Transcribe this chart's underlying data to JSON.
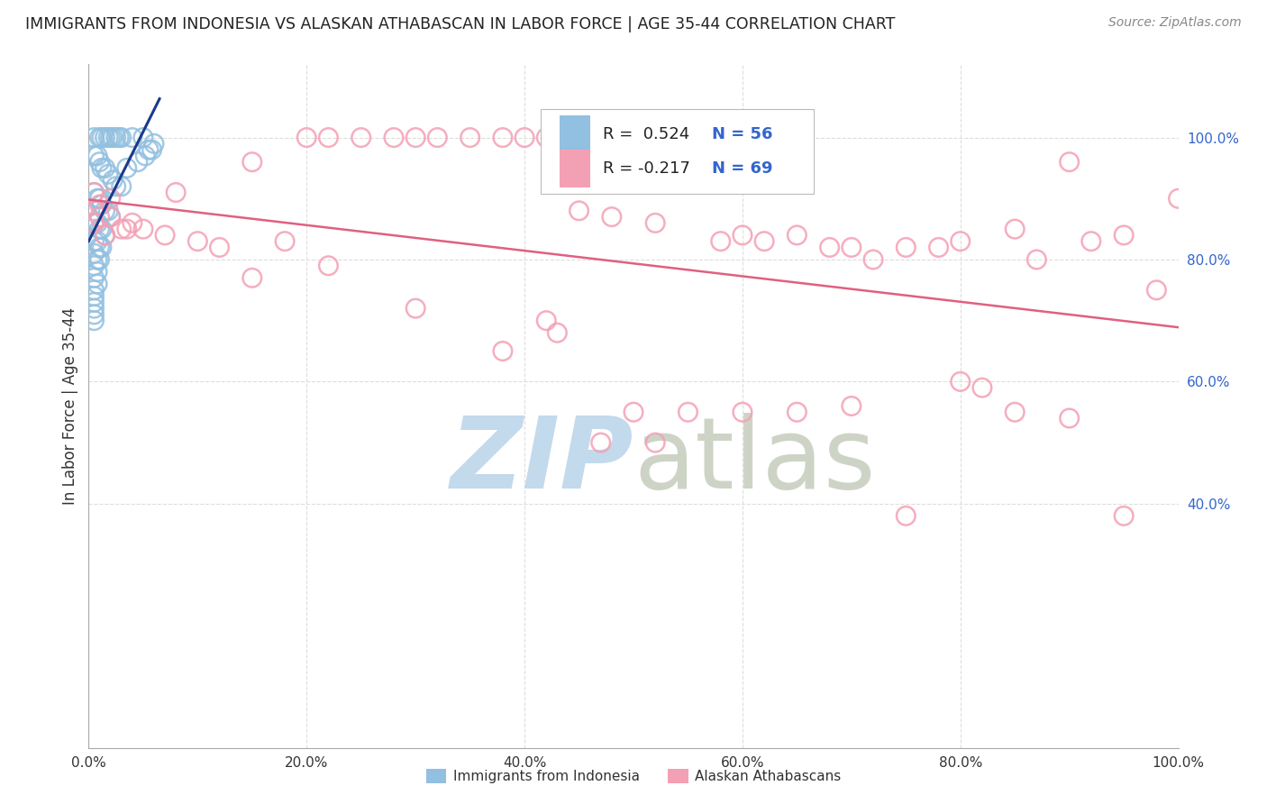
{
  "title": "IMMIGRANTS FROM INDONESIA VS ALASKAN ATHABASCAN IN LABOR FORCE | AGE 35-44 CORRELATION CHART",
  "source": "Source: ZipAtlas.com",
  "ylabel": "In Labor Force | Age 35-44",
  "xlim": [
    0.0,
    1.0
  ],
  "ylim": [
    0.0,
    1.12
  ],
  "xtick_labels": [
    "0.0%",
    "",
    "20.0%",
    "",
    "40.0%",
    "",
    "60.0%",
    "",
    "80.0%",
    "",
    "100.0%"
  ],
  "xtick_vals": [
    0.0,
    0.1,
    0.2,
    0.3,
    0.4,
    0.5,
    0.6,
    0.7,
    0.8,
    0.9,
    1.0
  ],
  "ytick_right_labels": [
    "40.0%",
    "60.0%",
    "80.0%",
    "100.0%"
  ],
  "ytick_right_vals": [
    0.4,
    0.6,
    0.8,
    1.0
  ],
  "legend_r_blue": "R =  0.524",
  "legend_n_blue": "N = 56",
  "legend_r_pink": "R = -0.217",
  "legend_n_pink": "N = 69",
  "blue_color": "#92C0E0",
  "pink_color": "#F4A0B4",
  "blue_line_color": "#1A3A8A",
  "pink_line_color": "#E06080",
  "grid_color": "#DDDDDD",
  "watermark_zip_color": "#BDD5EA",
  "watermark_atlas_color": "#C8D0C0",
  "blue_scatter_x": [
    0.005,
    0.01,
    0.012,
    0.015,
    0.018,
    0.02,
    0.022,
    0.025,
    0.028,
    0.03,
    0.005,
    0.008,
    0.01,
    0.012,
    0.015,
    0.018,
    0.022,
    0.025,
    0.005,
    0.008,
    0.01,
    0.012,
    0.015,
    0.018,
    0.02,
    0.005,
    0.008,
    0.01,
    0.012,
    0.015,
    0.005,
    0.008,
    0.01,
    0.012,
    0.005,
    0.008,
    0.01,
    0.005,
    0.008,
    0.005,
    0.008,
    0.005,
    0.005,
    0.005,
    0.005,
    0.005,
    0.005,
    0.03,
    0.04,
    0.05,
    0.055,
    0.06,
    0.035,
    0.045,
    0.052,
    0.058
  ],
  "blue_scatter_y": [
    1.0,
    1.0,
    1.0,
    1.0,
    1.0,
    1.0,
    1.0,
    1.0,
    1.0,
    1.0,
    0.97,
    0.97,
    0.96,
    0.95,
    0.95,
    0.94,
    0.93,
    0.92,
    0.91,
    0.9,
    0.9,
    0.89,
    0.88,
    0.88,
    0.87,
    0.86,
    0.86,
    0.85,
    0.85,
    0.84,
    0.83,
    0.83,
    0.82,
    0.82,
    0.81,
    0.8,
    0.8,
    0.79,
    0.78,
    0.77,
    0.76,
    0.75,
    0.74,
    0.73,
    0.72,
    0.71,
    0.7,
    0.92,
    1.0,
    1.0,
    0.98,
    0.99,
    0.95,
    0.96,
    0.97,
    0.98
  ],
  "pink_scatter_x": [
    0.005,
    0.005,
    0.005,
    0.01,
    0.01,
    0.015,
    0.02,
    0.02,
    0.03,
    0.035,
    0.04,
    0.05,
    0.07,
    0.08,
    0.1,
    0.12,
    0.15,
    0.18,
    0.2,
    0.22,
    0.25,
    0.28,
    0.3,
    0.32,
    0.35,
    0.38,
    0.4,
    0.42,
    0.45,
    0.48,
    0.5,
    0.52,
    0.55,
    0.58,
    0.6,
    0.62,
    0.65,
    0.68,
    0.7,
    0.72,
    0.75,
    0.78,
    0.8,
    0.82,
    0.85,
    0.87,
    0.9,
    0.92,
    0.95,
    0.98,
    1.0,
    0.5,
    0.55,
    0.6,
    0.65,
    0.7,
    0.75,
    0.8,
    0.85,
    0.9,
    0.95,
    0.47,
    0.52,
    0.43,
    0.42,
    0.38,
    0.3,
    0.22,
    0.15
  ],
  "pink_scatter_y": [
    0.88,
    0.91,
    0.86,
    0.87,
    0.89,
    0.84,
    0.87,
    0.9,
    0.85,
    0.85,
    0.86,
    0.85,
    0.84,
    0.91,
    0.83,
    0.82,
    0.96,
    0.83,
    1.0,
    1.0,
    1.0,
    1.0,
    1.0,
    1.0,
    1.0,
    1.0,
    1.0,
    1.0,
    0.88,
    0.87,
    1.0,
    0.86,
    1.0,
    0.83,
    0.84,
    0.83,
    0.84,
    0.82,
    0.82,
    0.8,
    0.82,
    0.82,
    0.83,
    0.59,
    0.85,
    0.8,
    0.96,
    0.83,
    0.84,
    0.75,
    0.9,
    0.55,
    0.55,
    0.55,
    0.55,
    0.56,
    0.38,
    0.6,
    0.55,
    0.54,
    0.38,
    0.5,
    0.5,
    0.68,
    0.7,
    0.65,
    0.72,
    0.79,
    0.77
  ]
}
